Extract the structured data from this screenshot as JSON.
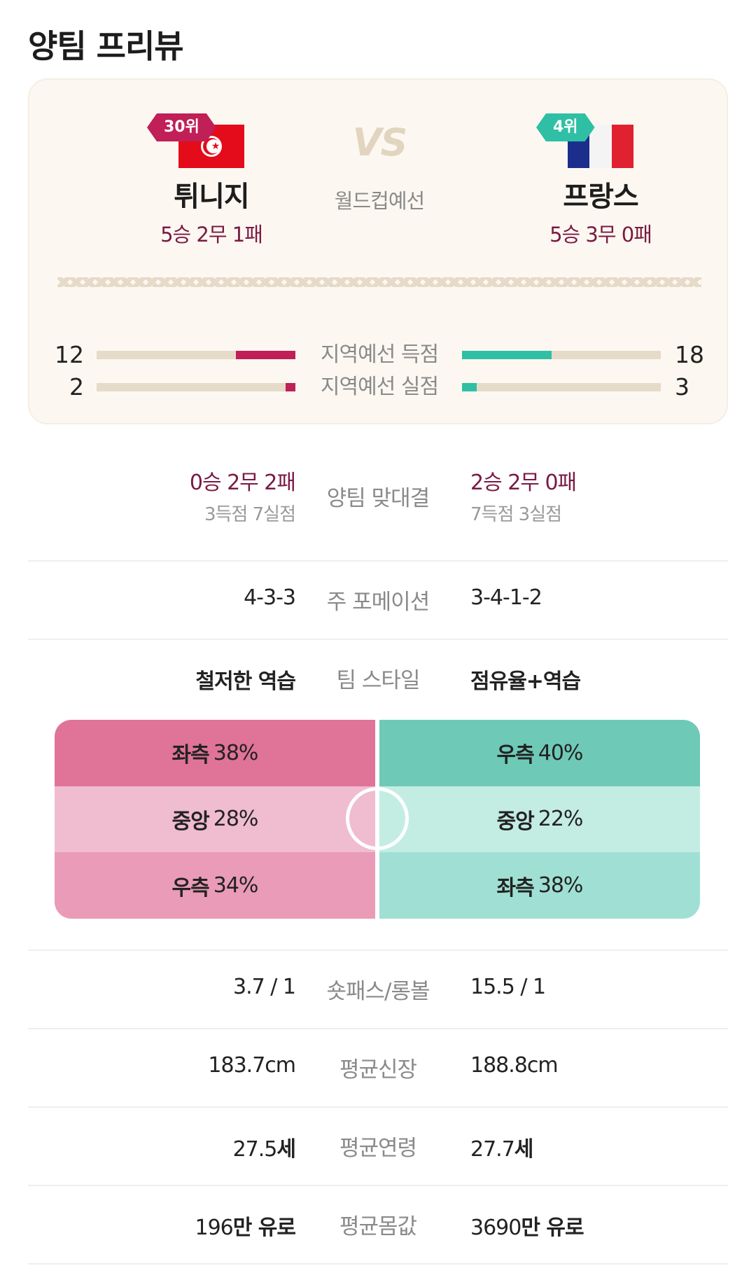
{
  "page_title": "양팀 프리뷰",
  "home": {
    "rank": "30위",
    "name": "튀니지",
    "record": "5승 2무 1패",
    "flag": "tunisia-flag"
  },
  "away": {
    "rank": "4위",
    "name": "프랑스",
    "record": "5승 3무 0패",
    "flag": "france-flag"
  },
  "vs_label": "VS",
  "match_type": "월드컵예선",
  "qualifier_stats": [
    {
      "label": "지역예선 득점",
      "home": "12",
      "away": "18",
      "home_value": 12,
      "away_value": 18,
      "max": 40
    },
    {
      "label": "지역예선 실점",
      "home": "2",
      "away": "3",
      "home_value": 2,
      "away_value": 3,
      "max": 40
    }
  ],
  "head_to_head": {
    "label": "양팀 맞대결",
    "home_record": "0승 2무 2패",
    "home_goals": "3득점 7실점",
    "away_record": "2승 2무 0패",
    "away_goals": "7득점 3실점"
  },
  "formation": {
    "label": "주 포메이션",
    "home": "4-3-3",
    "away": "3-4-1-2"
  },
  "team_style": {
    "label": "팀 스타일",
    "home": "철저한 역습",
    "away": "점유율+역습"
  },
  "attack_zones": {
    "home": [
      {
        "zone": "좌측",
        "value": "38%"
      },
      {
        "zone": "중앙",
        "value": "28%"
      },
      {
        "zone": "우측",
        "value": "34%"
      }
    ],
    "away": [
      {
        "zone": "우측",
        "value": "40%"
      },
      {
        "zone": "중앙",
        "value": "22%"
      },
      {
        "zone": "좌측",
        "value": "38%"
      }
    ]
  },
  "pass_ratio": {
    "label": "숏패스/롱볼",
    "home": "3.7 / 1",
    "away": "15.5 / 1"
  },
  "avg_height": {
    "label": "평균신장",
    "home": "183.7cm",
    "away": "188.8cm"
  },
  "avg_age": {
    "label": "평균연령",
    "home_num": "27.5",
    "home_unit": "세",
    "away_num": "27.7",
    "away_unit": "세"
  },
  "avg_value": {
    "label": "평균몸값",
    "home_num": "196",
    "home_unit": "만 유로",
    "away_num": "3690",
    "away_unit": "만 유로"
  },
  "colors": {
    "home_accent": "#c01f57",
    "away_accent": "#2fbfa4",
    "record_text": "#7a1a44"
  }
}
